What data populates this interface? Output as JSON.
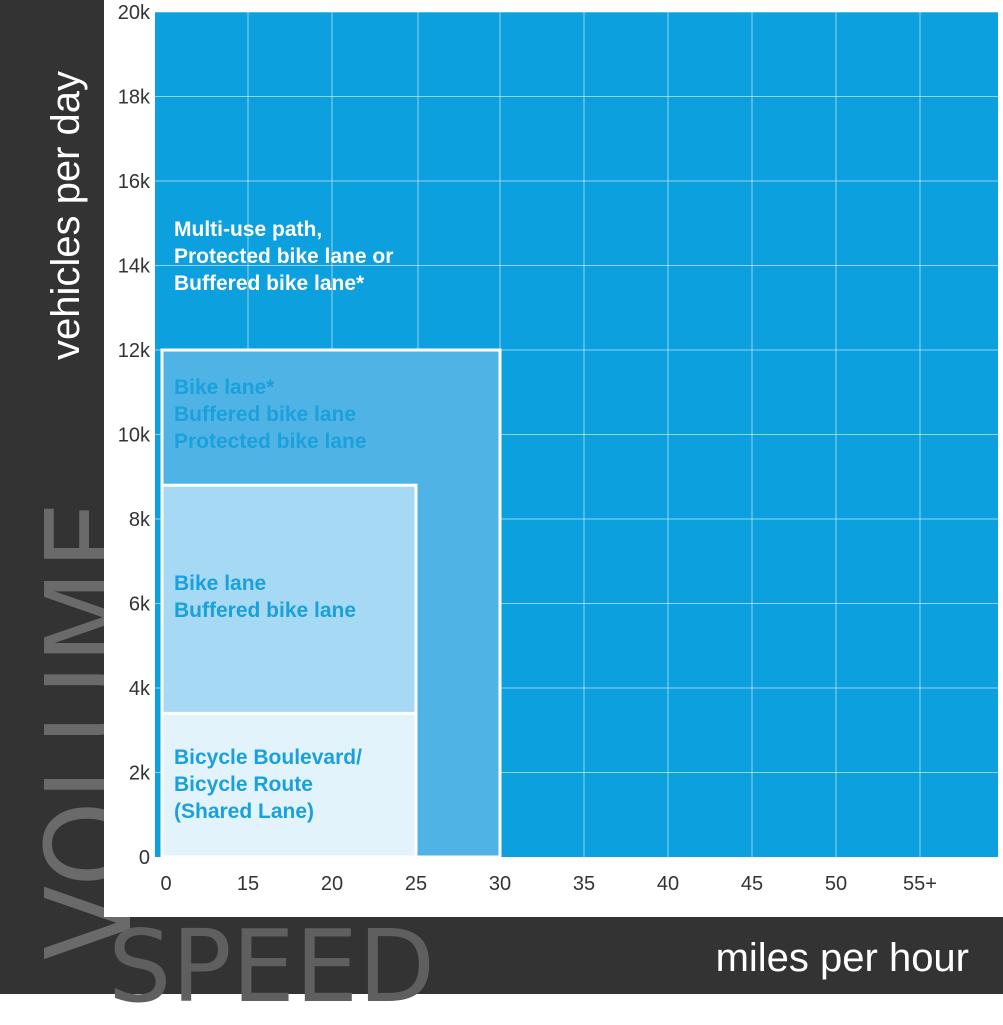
{
  "y_axis": {
    "big_label": "VOLUME",
    "small_label": "vehicles per day"
  },
  "x_axis": {
    "big_label": "SPEED",
    "small_label": "miles per hour"
  },
  "colors": {
    "background_zone": "#0ca0de",
    "zone_bike_lane_protected": "#4fb4e5",
    "zone_bike_lane_buffered": "#a6d9f3",
    "zone_bicycle_boulevard": "#e3f3fc",
    "dark_band": "#333333",
    "grid": "#ffffff",
    "label_white": "#ffffff",
    "label_blue": "#1aa1dc"
  },
  "chart_data": {
    "type": "area",
    "title": "",
    "xlabel": "miles per hour",
    "ylabel": "vehicles per day",
    "x_tick_labels": [
      "0",
      "15",
      "20",
      "25",
      "30",
      "35",
      "40",
      "45",
      "50",
      "55+"
    ],
    "y_tick_labels": [
      "0",
      "2k",
      "4k",
      "6k",
      "8k",
      "10k",
      "12k",
      "14k",
      "16k",
      "18k",
      "20k"
    ],
    "y_values": [
      0,
      2000,
      4000,
      6000,
      8000,
      10000,
      12000,
      14000,
      16000,
      18000,
      20000
    ],
    "ylim": [
      0,
      20000
    ],
    "grid": true,
    "zones": [
      {
        "label_lines": [
          "Multi-use path,",
          "Protected bike lane or",
          "Buffered bike lane*"
        ],
        "speed_max": "55+",
        "volume_max": 20000,
        "color_key": "background_zone",
        "text_color_key": "label_white"
      },
      {
        "label_lines": [
          "Bike lane*",
          "Buffered bike lane",
          "Protected bike lane"
        ],
        "speed_max": "30",
        "volume_max": 12000,
        "color_key": "zone_bike_lane_protected",
        "text_color_key": "label_blue"
      },
      {
        "label_lines": [
          "Bike lane",
          "Buffered bike lane"
        ],
        "speed_max": "25",
        "volume_max": 8800,
        "color_key": "zone_bike_lane_buffered",
        "text_color_key": "label_blue"
      },
      {
        "label_lines": [
          "Bicycle Boulevard/",
          "Bicycle Route",
          "(Shared Lane)"
        ],
        "speed_max": "25",
        "volume_max": 3400,
        "color_key": "zone_bicycle_boulevard",
        "text_color_key": "label_blue"
      }
    ]
  }
}
